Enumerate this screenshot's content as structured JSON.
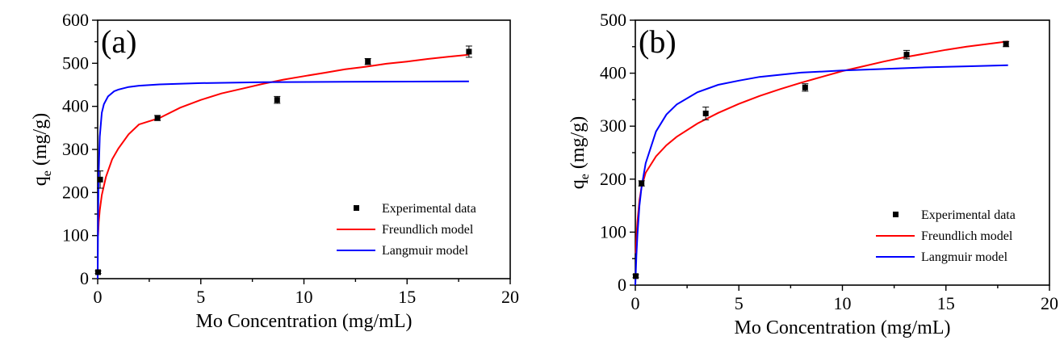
{
  "chart_data": [
    {
      "type": "scatter",
      "panel_label": "(a)",
      "xlabel": "Mo Concentration (mg/mL)",
      "ylabel_main": "q",
      "ylabel_sub": "e",
      "ylabel_rest": " (mg/g)",
      "xlim": [
        0,
        20
      ],
      "ylim": [
        0,
        600
      ],
      "xticks": [
        0,
        5,
        10,
        15,
        20
      ],
      "yticks": [
        0,
        100,
        200,
        300,
        400,
        500,
        600
      ],
      "legend_placement": "bottom-right",
      "series": [
        {
          "name": "Experimental data",
          "kind": "points",
          "color": "#000000",
          "x": [
            0.02,
            0.12,
            2.9,
            8.7,
            13.1,
            18.0
          ],
          "y": [
            15,
            230,
            373,
            415,
            504,
            527
          ],
          "err": [
            3,
            20,
            6,
            8,
            7,
            13
          ]
        },
        {
          "name": "Freundlich model",
          "kind": "curve",
          "color": "#ff0000",
          "x": [
            0.02,
            0.05,
            0.1,
            0.2,
            0.4,
            0.7,
            1,
            1.5,
            2,
            3,
            4,
            5,
            6,
            7,
            8,
            9,
            10,
            11,
            12,
            13,
            14,
            15,
            16,
            17,
            18
          ],
          "y": [
            100,
            131,
            159,
            194,
            236,
            277,
            302,
            335,
            358,
            373,
            397,
            415,
            430,
            441,
            452,
            462,
            470,
            478,
            486,
            492,
            499,
            504,
            510,
            515,
            520
          ]
        },
        {
          "name": "Langmuir model",
          "kind": "curve",
          "color": "#0000ff",
          "x": [
            0.0,
            0.02,
            0.05,
            0.1,
            0.2,
            0.3,
            0.5,
            0.8,
            1,
            1.5,
            2,
            3,
            5,
            8,
            12,
            18
          ],
          "y": [
            0,
            140,
            249,
            330,
            385,
            405,
            423,
            435,
            439,
            445,
            448,
            451,
            454,
            456,
            457,
            458
          ]
        }
      ]
    },
    {
      "type": "scatter",
      "panel_label": "(b)",
      "xlabel": "Mo Concentration (mg/mL)",
      "ylabel_main": "q",
      "ylabel_sub": "e",
      "ylabel_rest": " (mg/g)",
      "xlim": [
        0,
        20
      ],
      "ylim": [
        0,
        500
      ],
      "xticks": [
        0,
        5,
        10,
        15,
        20
      ],
      "yticks": [
        0,
        100,
        200,
        300,
        400,
        500
      ],
      "legend_placement": "bottom-right",
      "series": [
        {
          "name": "Experimental data",
          "kind": "points",
          "color": "#000000",
          "x": [
            0.02,
            0.3,
            3.4,
            8.2,
            13.1,
            17.9
          ],
          "y": [
            17,
            192,
            324,
            373,
            435,
            455
          ],
          "err": [
            3,
            5,
            12,
            7,
            8,
            5
          ]
        },
        {
          "name": "Freundlich model",
          "kind": "curve",
          "color": "#ff0000",
          "x": [
            0.02,
            0.05,
            0.1,
            0.2,
            0.3,
            0.5,
            1,
            1.5,
            2,
            3,
            4,
            5,
            6,
            7,
            8,
            9,
            10,
            11,
            12,
            13,
            14,
            15,
            16,
            17,
            18
          ],
          "y": [
            60,
            90,
            120,
            160,
            185,
            212,
            243,
            264,
            280,
            305,
            325,
            342,
            357,
            370,
            382,
            393,
            404,
            413,
            422,
            430,
            437,
            444,
            450,
            455,
            460
          ]
        },
        {
          "name": "Langmuir model",
          "kind": "curve",
          "color": "#0000ff",
          "x": [
            0.0,
            0.05,
            0.1,
            0.2,
            0.3,
            0.5,
            1,
            1.5,
            2,
            3,
            4,
            5,
            6,
            8,
            10,
            12,
            14,
            16,
            18
          ],
          "y": [
            0,
            55,
            95,
            150,
            185,
            230,
            290,
            322,
            341,
            364,
            378,
            386,
            393,
            401,
            405,
            408,
            411,
            413,
            415
          ]
        }
      ]
    }
  ]
}
